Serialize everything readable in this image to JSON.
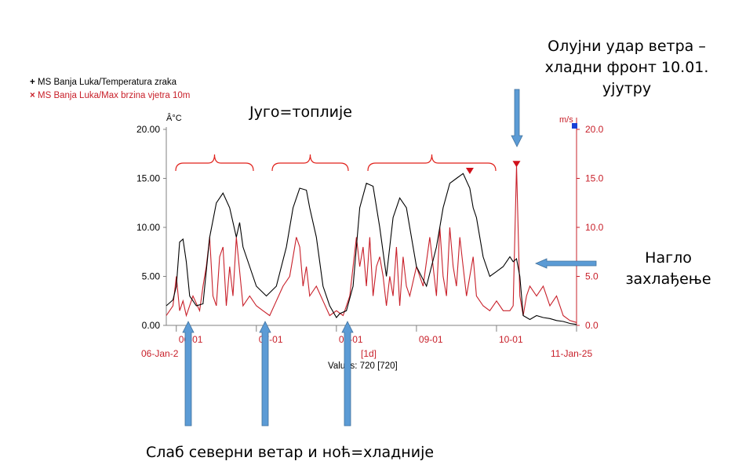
{
  "legend": {
    "temp_marker": "+",
    "temp_label": "MS Banja Luka/Temperatura zraka",
    "wind_marker": "×",
    "wind_label": "MS Banja Luka/Max brzina vjetra 10m"
  },
  "annotations": {
    "jugo": "Југо=топлије",
    "storm_line1": "Олујни удар ветра –",
    "storm_line2": "хладни фронт 10.01.",
    "storm_line3": "ујутру",
    "cool_line1": "Нагло",
    "cool_line2": "захлађење",
    "bottom": "Слаб северни ветар и ноћ=хладније"
  },
  "colors": {
    "temperature": "#000000",
    "wind": "#c8202a",
    "arrow": "#5b9bd5",
    "brace": "#e0201a",
    "axis": "#808080"
  },
  "chart_data": {
    "type": "line",
    "left_axis": {
      "unit": "Â°C",
      "ylim": [
        0,
        20
      ],
      "ticks": [
        "0.00",
        "5.00",
        "10.00",
        "15.00",
        "20.00"
      ]
    },
    "right_axis": {
      "unit": "m/s",
      "ylim": [
        0,
        20
      ],
      "ticks": [
        "0.0",
        "5.0",
        "10.0",
        "15.0",
        "20.0"
      ]
    },
    "x_labels": {
      "start": "06-Jan-2",
      "end": "11-Jan-25",
      "days": [
        "06-01",
        "07-01",
        "08-01",
        "09-01",
        "10-01"
      ],
      "interval": "[1d]",
      "values_text": "Values: 720 [720]"
    },
    "xlim": [
      "2025-01-05T21:00",
      "2025-01-11T00:00"
    ],
    "series": [
      {
        "name": "MS Banja Luka/Temperatura zraka",
        "axis": "left",
        "x": [
          "2025-01-05T21:00",
          "2025-01-05T23:00",
          "2025-01-06T00:00",
          "2025-01-06T01:00",
          "2025-01-06T02:00",
          "2025-01-06T03:00",
          "2025-01-06T04:00",
          "2025-01-06T06:00",
          "2025-01-06T08:00",
          "2025-01-06T10:00",
          "2025-01-06T12:00",
          "2025-01-06T14:00",
          "2025-01-06T16:00",
          "2025-01-06T18:00",
          "2025-01-06T19:00",
          "2025-01-06T20:00",
          "2025-01-06T22:00",
          "2025-01-07T00:00",
          "2025-01-07T03:00",
          "2025-01-07T06:00",
          "2025-01-07T09:00",
          "2025-01-07T11:00",
          "2025-01-07T13:00",
          "2025-01-07T15:00",
          "2025-01-07T16:00",
          "2025-01-07T18:00",
          "2025-01-07T20:00",
          "2025-01-07T22:00",
          "2025-01-08T00:00",
          "2025-01-08T01:00",
          "2025-01-08T03:00",
          "2025-01-08T05:00",
          "2025-01-08T07:00",
          "2025-01-08T09:00",
          "2025-01-08T11:00",
          "2025-01-08T13:00",
          "2025-01-08T15:00",
          "2025-01-08T17:00",
          "2025-01-08T19:00",
          "2025-01-08T21:00",
          "2025-01-09T00:00",
          "2025-01-09T03:00",
          "2025-01-09T06:00",
          "2025-01-09T08:00",
          "2025-01-09T10:00",
          "2025-01-09T12:00",
          "2025-01-09T14:00",
          "2025-01-09T16:00",
          "2025-01-09T17:00",
          "2025-01-09T18:00",
          "2025-01-09T20:00",
          "2025-01-09T22:00",
          "2025-01-10T00:00",
          "2025-01-10T02:00",
          "2025-01-10T03:00",
          "2025-01-10T04:00",
          "2025-01-10T05:00",
          "2025-01-10T06:00",
          "2025-01-10T07:00",
          "2025-01-10T08:00",
          "2025-01-10T10:00",
          "2025-01-10T12:00",
          "2025-01-10T14:00",
          "2025-01-10T16:00",
          "2025-01-10T18:00",
          "2025-01-10T20:00",
          "2025-01-10T22:00",
          "2025-01-11T00:00"
        ],
        "values": [
          2.0,
          2.6,
          4.0,
          8.5,
          8.8,
          6.5,
          3.0,
          2.0,
          2.2,
          9.0,
          12.5,
          13.5,
          12.0,
          9.0,
          10.5,
          8.0,
          6.0,
          4.0,
          3.0,
          4.0,
          8.0,
          12.0,
          14.0,
          13.8,
          12.0,
          9.0,
          4.0,
          2.0,
          0.8,
          1.2,
          1.5,
          4.0,
          12.0,
          14.5,
          14.2,
          10.0,
          5.0,
          11.0,
          13.0,
          12.0,
          6.0,
          4.0,
          8.0,
          12.0,
          14.5,
          15.0,
          15.5,
          14.0,
          12.0,
          11.0,
          7.0,
          5.0,
          5.5,
          6.0,
          6.5,
          7.0,
          6.5,
          6.8,
          5.0,
          1.0,
          0.6,
          1.0,
          0.8,
          0.7,
          0.5,
          0.4,
          0.2,
          0.1
        ]
      },
      {
        "name": "MS Banja Luka/Max brzina vjetra 10m",
        "axis": "right",
        "x": [
          "2025-01-05T21:00",
          "2025-01-05T23:00",
          "2025-01-06T00:00",
          "2025-01-06T01:00",
          "2025-01-06T02:00",
          "2025-01-06T03:00",
          "2025-01-06T05:00",
          "2025-01-06T07:00",
          "2025-01-06T08:00",
          "2025-01-06T09:00",
          "2025-01-06T10:00",
          "2025-01-06T11:00",
          "2025-01-06T12:00",
          "2025-01-06T13:00",
          "2025-01-06T14:00",
          "2025-01-06T15:00",
          "2025-01-06T16:00",
          "2025-01-06T17:00",
          "2025-01-06T18:00",
          "2025-01-06T20:00",
          "2025-01-06T22:00",
          "2025-01-07T00:00",
          "2025-01-07T02:00",
          "2025-01-07T04:00",
          "2025-01-07T06:00",
          "2025-01-07T08:00",
          "2025-01-07T10:00",
          "2025-01-07T11:00",
          "2025-01-07T12:00",
          "2025-01-07T13:00",
          "2025-01-07T14:00",
          "2025-01-07T15:00",
          "2025-01-07T16:00",
          "2025-01-07T18:00",
          "2025-01-07T20:00",
          "2025-01-07T22:00",
          "2025-01-08T00:00",
          "2025-01-08T02:00",
          "2025-01-08T04:00",
          "2025-01-08T05:00",
          "2025-01-08T06:00",
          "2025-01-08T07:00",
          "2025-01-08T08:00",
          "2025-01-08T09:00",
          "2025-01-08T10:00",
          "2025-01-08T11:00",
          "2025-01-08T12:00",
          "2025-01-08T13:00",
          "2025-01-08T14:00",
          "2025-01-08T15:00",
          "2025-01-08T16:00",
          "2025-01-08T17:00",
          "2025-01-08T18:00",
          "2025-01-08T19:00",
          "2025-01-08T20:00",
          "2025-01-08T21:00",
          "2025-01-08T22:00",
          "2025-01-09T00:00",
          "2025-01-09T02:00",
          "2025-01-09T04:00",
          "2025-01-09T06:00",
          "2025-01-09T07:00",
          "2025-01-09T08:00",
          "2025-01-09T09:00",
          "2025-01-09T10:00",
          "2025-01-09T11:00",
          "2025-01-09T12:00",
          "2025-01-09T13:00",
          "2025-01-09T14:00",
          "2025-01-09T15:00",
          "2025-01-09T16:00",
          "2025-01-09T17:00",
          "2025-01-09T18:00",
          "2025-01-09T20:00",
          "2025-01-09T22:00",
          "2025-01-10T00:00",
          "2025-01-10T02:00",
          "2025-01-10T04:00",
          "2025-01-10T05:00",
          "2025-01-10T06:00",
          "2025-01-10T07:00",
          "2025-01-10T08:00",
          "2025-01-10T09:00",
          "2025-01-10T10:00",
          "2025-01-10T12:00",
          "2025-01-10T14:00",
          "2025-01-10T16:00",
          "2025-01-10T18:00",
          "2025-01-10T20:00",
          "2025-01-10T22:00",
          "2025-01-11T00:00"
        ],
        "values": [
          1.0,
          2.0,
          5.0,
          1.5,
          2.5,
          1.0,
          3.0,
          1.5,
          4.0,
          6.0,
          9.0,
          3.0,
          2.0,
          7.0,
          8.0,
          2.0,
          6.0,
          3.0,
          9.0,
          2.0,
          3.0,
          2.0,
          1.5,
          1.0,
          2.5,
          4.0,
          5.0,
          7.0,
          9.0,
          8.0,
          4.0,
          6.0,
          3.0,
          4.0,
          2.5,
          1.0,
          1.5,
          1.0,
          3.0,
          6.0,
          9.0,
          6.0,
          8.0,
          4.0,
          9.0,
          3.0,
          6.0,
          7.0,
          5.0,
          2.0,
          5.0,
          3.0,
          8.0,
          2.0,
          7.0,
          4.0,
          3.0,
          6.0,
          4.0,
          9.0,
          3.0,
          10.0,
          5.0,
          3.0,
          10.0,
          6.0,
          4.0,
          9.0,
          6.0,
          3.0,
          5.0,
          7.0,
          3.0,
          2.0,
          1.5,
          2.5,
          1.5,
          1.5,
          2.0,
          16.3,
          3.0,
          1.0,
          3.0,
          4.0,
          3.0,
          4.0,
          2.0,
          3.0,
          1.0,
          0.5,
          0.3
        ]
      }
    ],
    "peaks": [
      {
        "series": "MS Banja Luka/Temperatura zraka",
        "x": "2025-01-09T16:00",
        "value": 15.6
      },
      {
        "series": "MS Banja Luka/Max brzina vjetra 10m",
        "x": "2025-01-10T06:00",
        "value": 16.3
      }
    ]
  }
}
